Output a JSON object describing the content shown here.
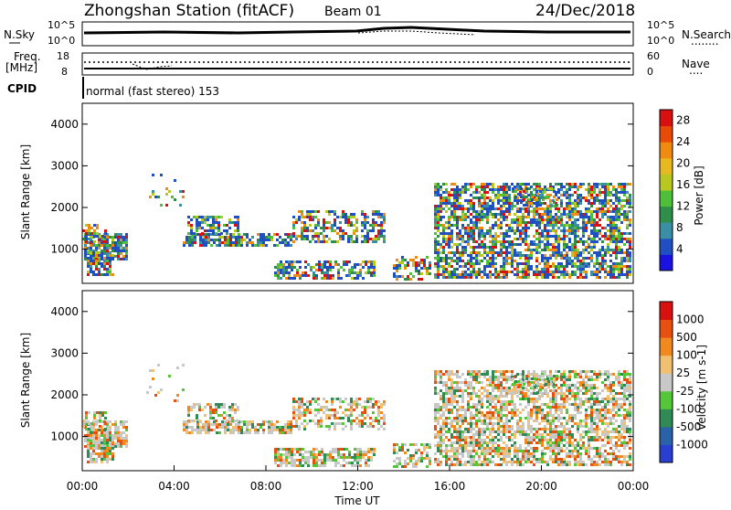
{
  "header": {
    "station": "Zhongshan Station (fitACF)",
    "beam": "Beam 01",
    "date": "24/Dec/2018"
  },
  "panels": {
    "nsky": {
      "left_label": "N.Sky",
      "left_ticks": [
        "10^5",
        "10^0"
      ],
      "right_ticks": [
        "10^5",
        "10^0"
      ],
      "right_label": "N.Search",
      "right_label_dots": "........"
    },
    "freq": {
      "left_label_1": "Freq.",
      "left_label_2": "[MHz]",
      "left_ticks": [
        "18",
        "8"
      ],
      "right_ticks": [
        "60",
        "0"
      ],
      "right_label": "Nave",
      "right_label_dots": "...."
    },
    "cpid": {
      "label": "CPID",
      "mode_text": "normal (fast stereo) 153"
    }
  },
  "chart_data": [
    {
      "type": "heatmap",
      "name": "power",
      "xlabel": "",
      "ylabel": "Slant Range [km]",
      "ylim": [
        180,
        4500
      ],
      "y_ticks": [
        "1000",
        "2000",
        "3000",
        "4000"
      ],
      "colorbar": {
        "title": "Power [dB]",
        "ticks": [
          "4",
          "8",
          "12",
          "16",
          "20",
          "24",
          "28"
        ],
        "range": [
          0,
          30
        ],
        "colors": [
          "#1a12e0",
          "#1f4fc0",
          "#3a8fa6",
          "#2f8f4a",
          "#4fbf3a",
          "#b8c820",
          "#e8b820",
          "#f08a10",
          "#e84a08",
          "#d81010"
        ]
      }
    },
    {
      "type": "heatmap",
      "name": "velocity",
      "xlabel": "Time UT",
      "ylabel": "Slant Range [km]",
      "ylim": [
        180,
        4500
      ],
      "y_ticks": [
        "1000",
        "2000",
        "3000",
        "4000"
      ],
      "x_ticks": [
        "00:00",
        "04:00",
        "08:00",
        "12:00",
        "16:00",
        "20:00",
        "00:00"
      ],
      "colorbar": {
        "title": "Velocity [m s-1]",
        "ticks": [
          "1000",
          "500",
          "100",
          "25",
          "-25",
          "-100",
          "-500",
          "-1000"
        ],
        "colors": [
          "#2a3fd0",
          "#2a62a8",
          "#2f8a55",
          "#55c63a",
          "#c8c8c8",
          "#f0c070",
          "#f08a20",
          "#e85010",
          "#d81010"
        ]
      }
    }
  ]
}
